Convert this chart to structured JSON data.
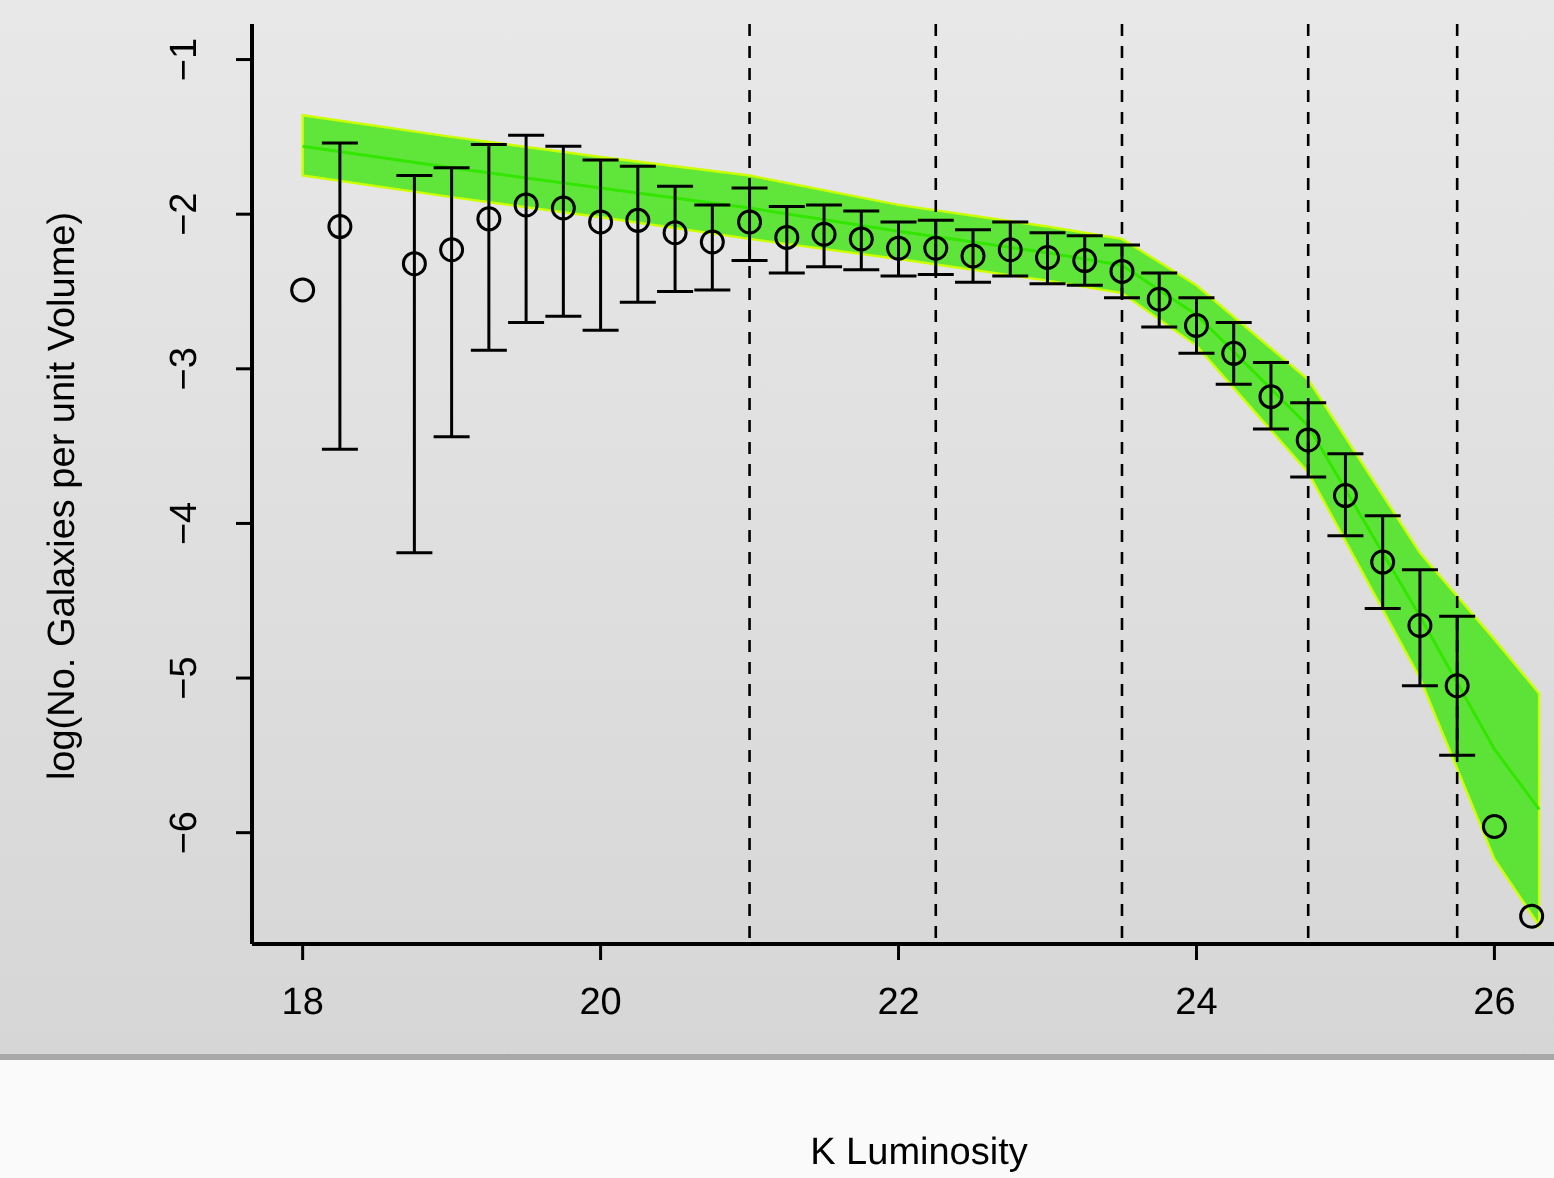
{
  "chart_data": {
    "type": "scatter",
    "xlabel": "K Luminosity",
    "ylabel": "log(No. Galaxies per unit Volume)",
    "xlim": [
      17.66,
      26.4
    ],
    "ylim": [
      -6.72,
      -0.77
    ],
    "xticks": [
      18,
      20,
      22,
      24,
      26
    ],
    "yticks": [
      -1,
      -2,
      -3,
      -4,
      -5,
      -6
    ],
    "grid": false,
    "series": [
      {
        "type": "line",
        "marker": "none",
        "color": "#33e600",
        "x": [
          18,
          19,
          20,
          21,
          22,
          23,
          23.5,
          24,
          24.75,
          25.5,
          26,
          26.3
        ],
        "values": [
          -1.56,
          -1.7,
          -1.83,
          -1.96,
          -2.11,
          -2.25,
          -2.33,
          -2.65,
          -3.37,
          -4.6,
          -5.46,
          -5.85
        ],
        "lower": [
          -1.75,
          -1.89,
          -2.02,
          -2.16,
          -2.29,
          -2.43,
          -2.51,
          -2.85,
          -3.67,
          -5.0,
          -6.17,
          -6.6
        ],
        "upper": [
          -1.36,
          -1.5,
          -1.63,
          -1.75,
          -1.94,
          -2.08,
          -2.16,
          -2.46,
          -3.07,
          -4.19,
          -4.75,
          -5.1
        ]
      },
      {
        "marker": "circle",
        "color": "#000000",
        "x": [
          18,
          18.25,
          18.75,
          19,
          19.25,
          19.5,
          19.75,
          20,
          20.25,
          20.5,
          20.75,
          21,
          21.25,
          21.5,
          21.75,
          22,
          22.25,
          22.5,
          22.75,
          23,
          23.25,
          23.5,
          23.75,
          24,
          24.25,
          24.5,
          24.75,
          25,
          25.25,
          25.5,
          25.75,
          26,
          26.25
        ],
        "values": [
          -2.49,
          -2.08,
          -2.32,
          -2.23,
          -2.03,
          -1.94,
          -1.96,
          -2.05,
          -2.04,
          -2.12,
          -2.18,
          -2.05,
          -2.15,
          -2.13,
          -2.16,
          -2.22,
          -2.22,
          -2.27,
          -2.23,
          -2.28,
          -2.3,
          -2.37,
          -2.55,
          -2.72,
          -2.9,
          -3.18,
          -3.46,
          -3.82,
          -4.25,
          -4.66,
          -5.05,
          -5.96,
          -6.54
        ],
        "errors": [
          null,
          [
            -3.52,
            -1.54
          ],
          [
            -4.19,
            -1.75
          ],
          [
            -3.44,
            -1.7
          ],
          [
            -2.88,
            -1.55
          ],
          [
            -2.7,
            -1.49
          ],
          [
            -2.66,
            -1.56
          ],
          [
            -2.75,
            -1.65
          ],
          [
            -2.57,
            -1.69
          ],
          [
            -2.5,
            -1.82
          ],
          [
            -2.49,
            -1.94
          ],
          [
            -2.3,
            -1.83
          ],
          [
            -2.38,
            -1.95
          ],
          [
            -2.34,
            -1.94
          ],
          [
            -2.36,
            -1.98
          ],
          [
            -2.4,
            -2.05
          ],
          [
            -2.39,
            -2.04
          ],
          [
            -2.44,
            -2.1
          ],
          [
            -2.4,
            -2.05
          ],
          [
            -2.45,
            -2.12
          ],
          [
            -2.46,
            -2.14
          ],
          [
            -2.54,
            -2.2
          ],
          [
            -2.73,
            -2.38
          ],
          [
            -2.9,
            -2.54
          ],
          [
            -3.1,
            -2.7
          ],
          [
            -3.39,
            -2.96
          ],
          [
            -3.7,
            -3.22
          ],
          [
            -4.08,
            -3.55
          ],
          [
            -4.55,
            -3.95
          ],
          [
            -5.05,
            -4.3
          ],
          [
            -5.5,
            -4.6
          ],
          null,
          null
        ]
      }
    ],
    "ref_lines": [
      {
        "axis": "x",
        "value": 21,
        "line_style": "dashed"
      },
      {
        "axis": "x",
        "value": 22.25,
        "line_style": "dashed"
      },
      {
        "axis": "x",
        "value": 23.5,
        "line_style": "dashed"
      },
      {
        "axis": "x",
        "value": 24.75,
        "line_style": "dashed"
      },
      {
        "axis": "x",
        "value": 25.75,
        "line_style": "dashed"
      }
    ]
  }
}
